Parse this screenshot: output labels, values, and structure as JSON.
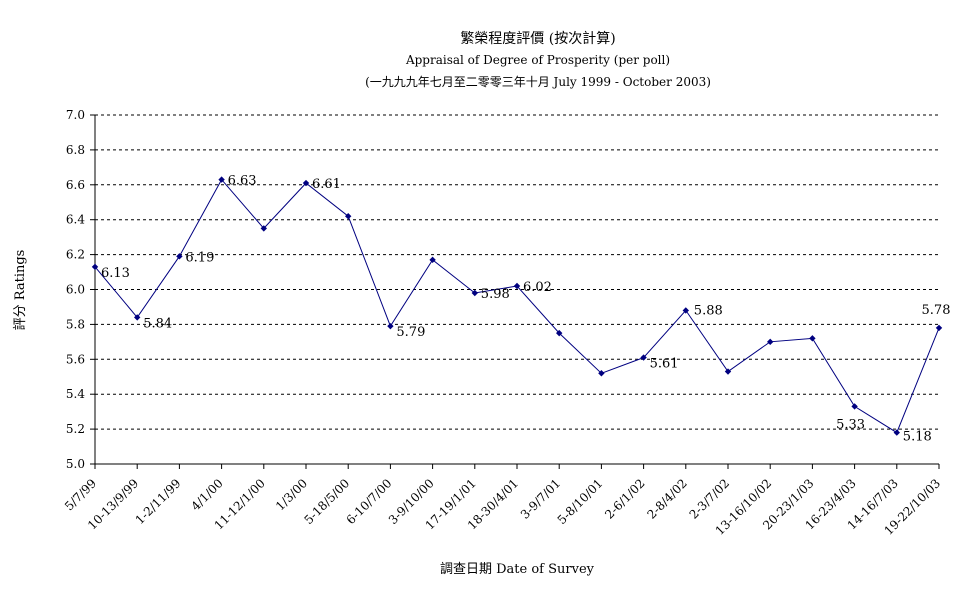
{
  "chart_data": {
    "type": "line",
    "title": "繁榮程度評價 (按次計算)",
    "subtitle": "Appraisal of Degree of Prosperity (per poll)",
    "subtitle2": "(一九九九年七月至二零零三年十月 July 1999 - October 2003)",
    "xlabel": "調查日期 Date of Survey",
    "ylabel": "評分 Ratings",
    "ylim": [
      5.0,
      7.0
    ],
    "yticks": [
      "5.0",
      "5.2",
      "5.4",
      "5.6",
      "5.8",
      "6.0",
      "6.2",
      "6.4",
      "6.6",
      "6.8",
      "7.0"
    ],
    "grid": true,
    "categories": [
      "5/7/99",
      "10-13/9/99",
      "1-2/11/99",
      "4/1/00",
      "11-12/1/00",
      "1/3/00",
      "5-18/5/00",
      "6-10/7/00",
      "3-9/10/00",
      "17-19/1/01",
      "18-30/4/01",
      "3-9/7/01",
      "5-8/10/01",
      "2-6/1/02",
      "2-8/4/02",
      "2-3/7/02",
      "13-16/10/02",
      "20-23/1/03",
      "16-23/4/03",
      "14-16/7/03",
      "19-22/10/03"
    ],
    "series": [
      {
        "values": [
          6.13,
          5.84,
          6.19,
          6.63,
          6.35,
          6.61,
          6.42,
          5.79,
          6.17,
          5.98,
          6.02,
          5.75,
          5.52,
          5.61,
          5.88,
          5.53,
          5.7,
          5.72,
          5.33,
          5.18,
          5.78
        ],
        "color": "#000080"
      }
    ],
    "data_labels": [
      {
        "index": 0,
        "text": "6.13"
      },
      {
        "index": 1,
        "text": "5.84"
      },
      {
        "index": 2,
        "text": "6.19"
      },
      {
        "index": 3,
        "text": "6.63"
      },
      {
        "index": 5,
        "text": "6.61"
      },
      {
        "index": 7,
        "text": "5.79"
      },
      {
        "index": 9,
        "text": "5.98"
      },
      {
        "index": 10,
        "text": "6.02"
      },
      {
        "index": 13,
        "text": "5.61"
      },
      {
        "index": 14,
        "text": "5.88"
      },
      {
        "index": 18,
        "text": "5.33"
      },
      {
        "index": 19,
        "text": "5.18"
      },
      {
        "index": 20,
        "text": "5.78"
      }
    ]
  }
}
